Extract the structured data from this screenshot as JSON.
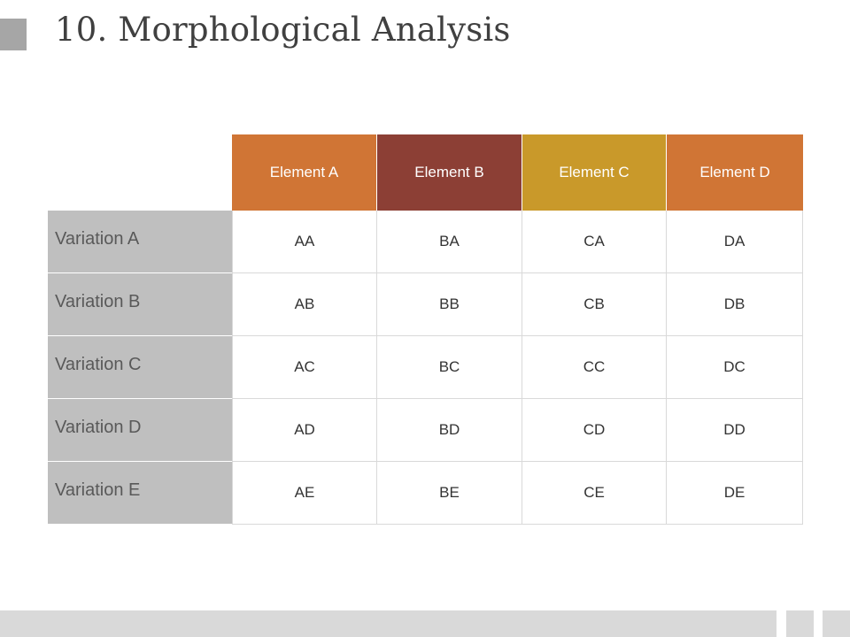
{
  "slide": {
    "title": "10. Morphological Analysis"
  },
  "table": {
    "columns": [
      {
        "label": "Element A",
        "color": "#D07535"
      },
      {
        "label": "Element B",
        "color": "#8C3F35"
      },
      {
        "label": "Element C",
        "color": "#C9992A"
      },
      {
        "label": "Element D",
        "color": "#D07535"
      }
    ],
    "rows": [
      {
        "label": "Variation A",
        "cells": [
          "AA",
          "BA",
          "CA",
          "DA"
        ]
      },
      {
        "label": "Variation B",
        "cells": [
          "AB",
          "BB",
          "CB",
          "DB"
        ]
      },
      {
        "label": "Variation C",
        "cells": [
          "AC",
          "BC",
          "CC",
          "DC"
        ]
      },
      {
        "label": "Variation D",
        "cells": [
          "AD",
          "BD",
          "CD",
          "DD"
        ]
      },
      {
        "label": "Variation E",
        "cells": [
          "AE",
          "BE",
          "CE",
          "DE"
        ]
      }
    ],
    "row_label_color": "#BFBFBF"
  }
}
